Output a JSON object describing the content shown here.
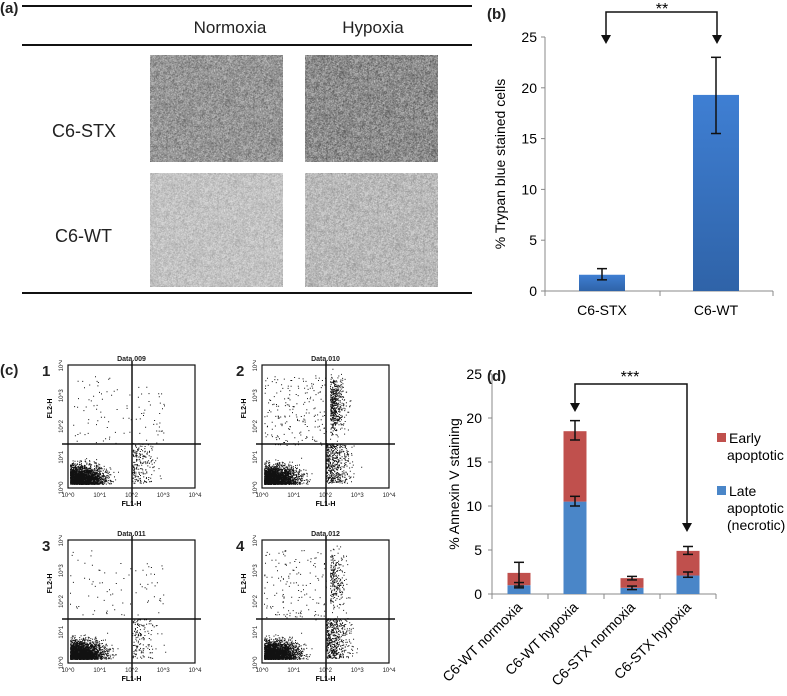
{
  "panel_a": {
    "label": "(a)",
    "columns": [
      "Normoxia",
      "Hypoxia"
    ],
    "rows": [
      "C6-STX",
      "C6-WT"
    ]
  },
  "panel_c": {
    "label": "(c)",
    "plots": [
      {
        "num": "1",
        "title": "Data.009"
      },
      {
        "num": "2",
        "title": "Data.010"
      },
      {
        "num": "3",
        "title": "Data.011"
      },
      {
        "num": "4",
        "title": "Data.012"
      }
    ],
    "xlabel": "FL1-H",
    "ylabel": "FL2-H",
    "ticks": [
      "10^0",
      "10^1",
      "10^2",
      "10^3",
      "10^4"
    ]
  },
  "chart_data": [
    {
      "panel": "(b)",
      "type": "bar",
      "ylabel": "% Trypan blue stained cells",
      "categories": [
        "C6-STX",
        "C6-WT"
      ],
      "values": [
        1.6,
        19.3
      ],
      "error_low": [
        1.1,
        15.5
      ],
      "error_high": [
        2.2,
        23.0
      ],
      "ylim": [
        0,
        25
      ],
      "yticks": [
        0,
        5,
        10,
        15,
        20,
        25
      ],
      "color": "#3a78c9",
      "significance": "**",
      "grid": false
    },
    {
      "panel": "(d)",
      "type": "bar",
      "stacked": true,
      "ylabel": "% Annexin V staining",
      "categories": [
        "C6-WT normoxia",
        "C6-WT hypoxia",
        "C6-STX normoxia",
        "C6-STX hypoxia"
      ],
      "series": [
        {
          "name": "Late apoptotic (necrotic)",
          "color": "#4a86c8",
          "values": [
            1.0,
            10.5,
            0.7,
            2.1
          ],
          "error_low": [
            0.7,
            10.0,
            0.5,
            1.9
          ],
          "error_high": [
            1.3,
            11.1,
            0.9,
            2.5
          ]
        },
        {
          "name": "Early apoptotic",
          "color": "#c0504d",
          "values": [
            1.4,
            8.0,
            1.1,
            2.8
          ],
          "error_low": [
            0.9,
            17.5,
            1.6,
            4.5
          ],
          "error_high": [
            3.6,
            19.7,
            2.0,
            5.4
          ]
        }
      ],
      "legend_lines": [
        [
          "Early",
          "apoptotic"
        ],
        [
          "Late",
          "apoptotic",
          "(necrotic)"
        ]
      ],
      "ylim": [
        0,
        25
      ],
      "yticks": [
        0,
        5,
        10,
        15,
        20,
        25
      ],
      "significance": "***",
      "legend_position": "right",
      "grid": false
    }
  ]
}
